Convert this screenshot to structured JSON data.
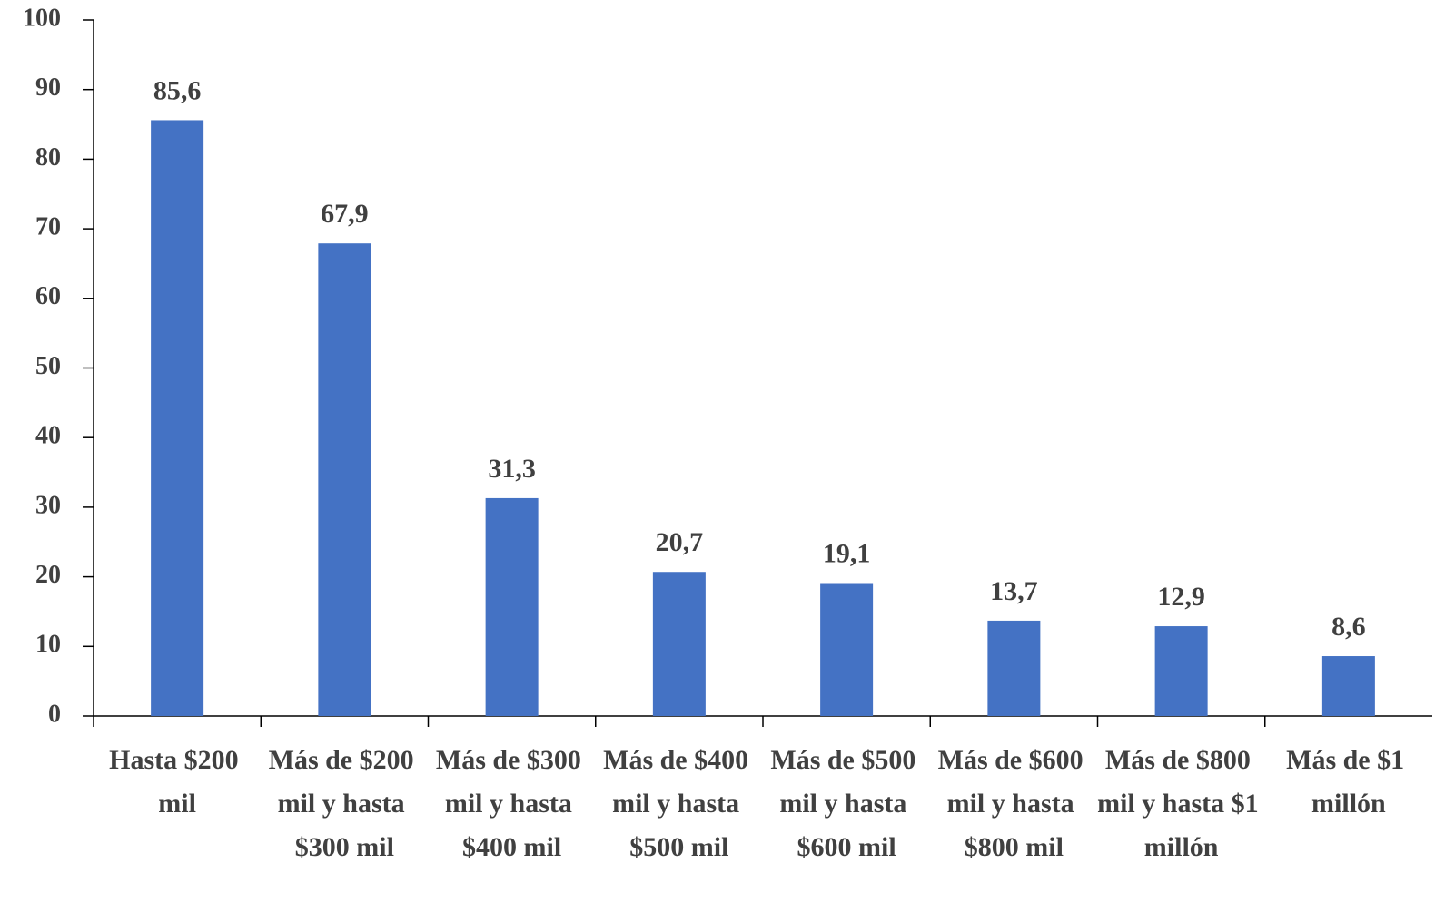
{
  "chart_data": {
    "type": "bar",
    "categories": [
      "Hasta $200 mil",
      "Más de $200 mil y hasta $300 mil",
      "Más de $300 mil y hasta $400 mil",
      "Más de $400 mil y hasta $500 mil",
      "Más de $500 mil y hasta $600 mil",
      "Más de $600 mil y hasta $800 mil",
      "Más de $800 mil y hasta $1 millón",
      "Más de $1 millón"
    ],
    "values": [
      85.6,
      67.9,
      31.3,
      20.7,
      19.1,
      13.7,
      12.9,
      8.6
    ],
    "value_labels": [
      "85,6",
      "67,9",
      "31,3",
      "20,7",
      "19,1",
      "13,7",
      "12,9",
      "8,6"
    ],
    "color": "#4472c4",
    "ylim": [
      0,
      100
    ],
    "yticks": [
      0,
      10,
      20,
      30,
      40,
      50,
      60,
      70,
      80,
      90,
      100
    ],
    "grid": false
  }
}
